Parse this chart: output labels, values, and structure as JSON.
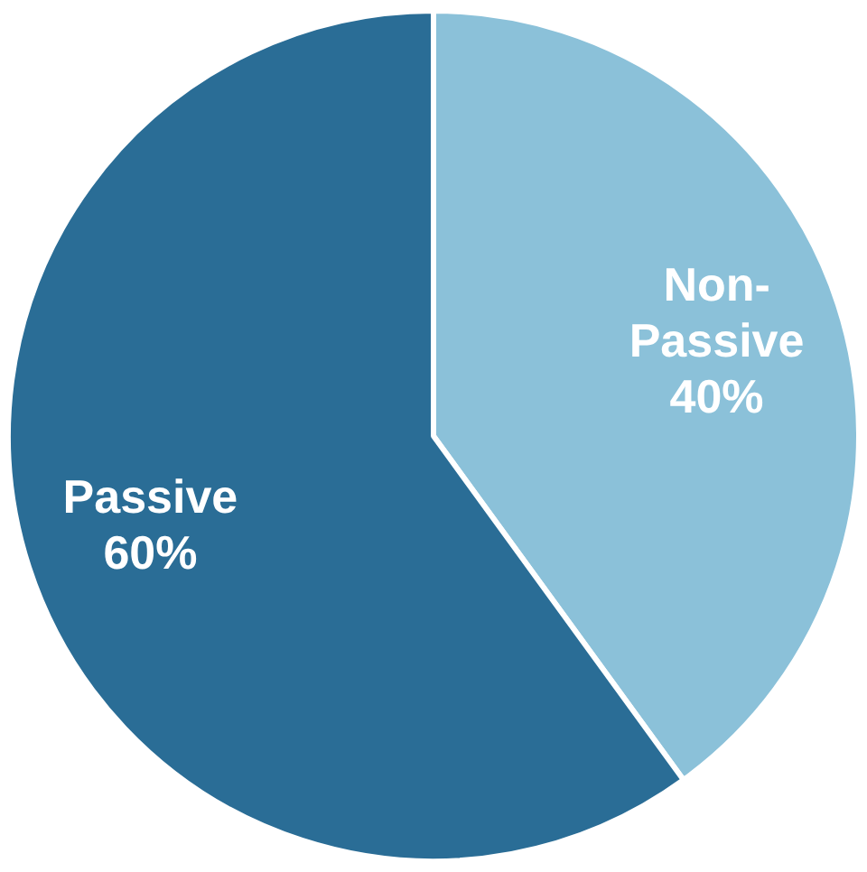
{
  "chart_data": {
    "type": "pie",
    "categories": [
      "Non-Passive",
      "Passive"
    ],
    "values": [
      40,
      60
    ],
    "value_labels": [
      "40%",
      "60%"
    ],
    "colors": [
      "#8bc1d9",
      "#2a6d96"
    ],
    "legend": false
  }
}
